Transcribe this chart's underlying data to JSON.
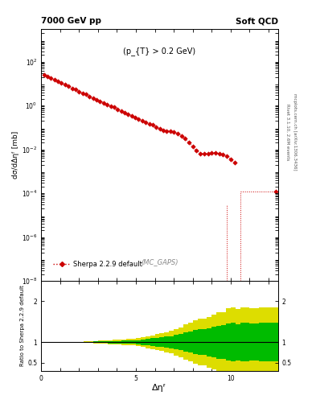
{
  "title_left": "7000 GeV pp",
  "title_right": "Soft QCD",
  "annotation": "(p_{T} > 0.2 GeV)",
  "mc_label": "(MC_GAPS)",
  "ylabel_main": "dσ/dΔηᶠ [mb]",
  "ylabel_ratio": "Ratio to Sherpa 2.2.9 default",
  "xlabel": "Δηᶠ",
  "legend_label": "Sherpa 2.2.9 default",
  "right_label1": "Rivet 3.1.10, 2.6M events",
  "right_label2": "mcplots.cern.ch [arXiv:1306.3436]",
  "line_color": "#cc0000",
  "band_color_inner": "#00bb00",
  "band_color_outer": "#dddd00",
  "xlim": [
    0,
    12.5
  ],
  "ylim_main_log": [
    -8,
    3.5
  ],
  "ylim_ratio": [
    0.3,
    2.5
  ],
  "ratio_yticks": [
    0.5,
    1.0,
    2.0
  ]
}
